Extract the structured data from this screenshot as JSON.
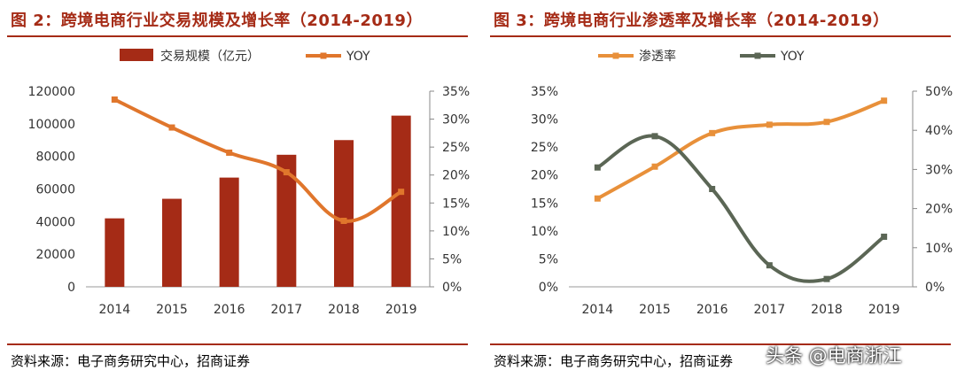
{
  "charts": [
    {
      "title": "图 2：跨境电商行业交易规模及增长率（2014-2019）",
      "source": "资料来源：电子商务研究中心，招商证券",
      "chart_data": {
        "type": "bar",
        "categories": [
          "2014",
          "2015",
          "2016",
          "2017",
          "2018",
          "2019"
        ],
        "series": [
          {
            "name": "交易规模（亿元）",
            "type": "bar",
            "axis": "left",
            "color": "#a52b16",
            "values": [
              42000,
              54000,
              67000,
              81000,
              90000,
              105000
            ]
          },
          {
            "name": "YOY",
            "type": "line",
            "axis": "right",
            "color": "#e0762c",
            "values": [
              33.5,
              28.5,
              24.0,
              20.5,
              11.8,
              17.0
            ]
          }
        ],
        "ylim": [
          0,
          120000
        ],
        "yticks": [
          "0",
          "20000",
          "40000",
          "60000",
          "80000",
          "100000",
          "120000"
        ],
        "y2lim": [
          0,
          35
        ],
        "y2ticks": [
          "0%",
          "5%",
          "10%",
          "15%",
          "20%",
          "25%",
          "30%",
          "35%"
        ],
        "legend": "top"
      }
    },
    {
      "title": "图 3：跨境电商行业渗透率及增长率（2014-2019）",
      "source": "资料来源：电子商务研究中心，招商证券",
      "chart_data": {
        "type": "line",
        "categories": [
          "2014",
          "2015",
          "2016",
          "2017",
          "2018",
          "2019"
        ],
        "series": [
          {
            "name": "渗透率",
            "axis": "left",
            "color": "#e8903a",
            "values": [
              15.8,
              21.5,
              27.5,
              29.0,
              29.5,
              33.3
            ]
          },
          {
            "name": "YOY",
            "axis": "right",
            "color": "#5b6655",
            "values": [
              30.5,
              38.5,
              25.0,
              5.5,
              2.0,
              12.8
            ]
          }
        ],
        "ylim": [
          0,
          35
        ],
        "yticks": [
          "0%",
          "5%",
          "10%",
          "15%",
          "20%",
          "25%",
          "30%",
          "35%"
        ],
        "y2lim": [
          0,
          50
        ],
        "y2ticks": [
          "0%",
          "10%",
          "20%",
          "30%",
          "40%",
          "50%"
        ],
        "legend": "top"
      }
    }
  ],
  "watermark": "头条 @电商浙江"
}
